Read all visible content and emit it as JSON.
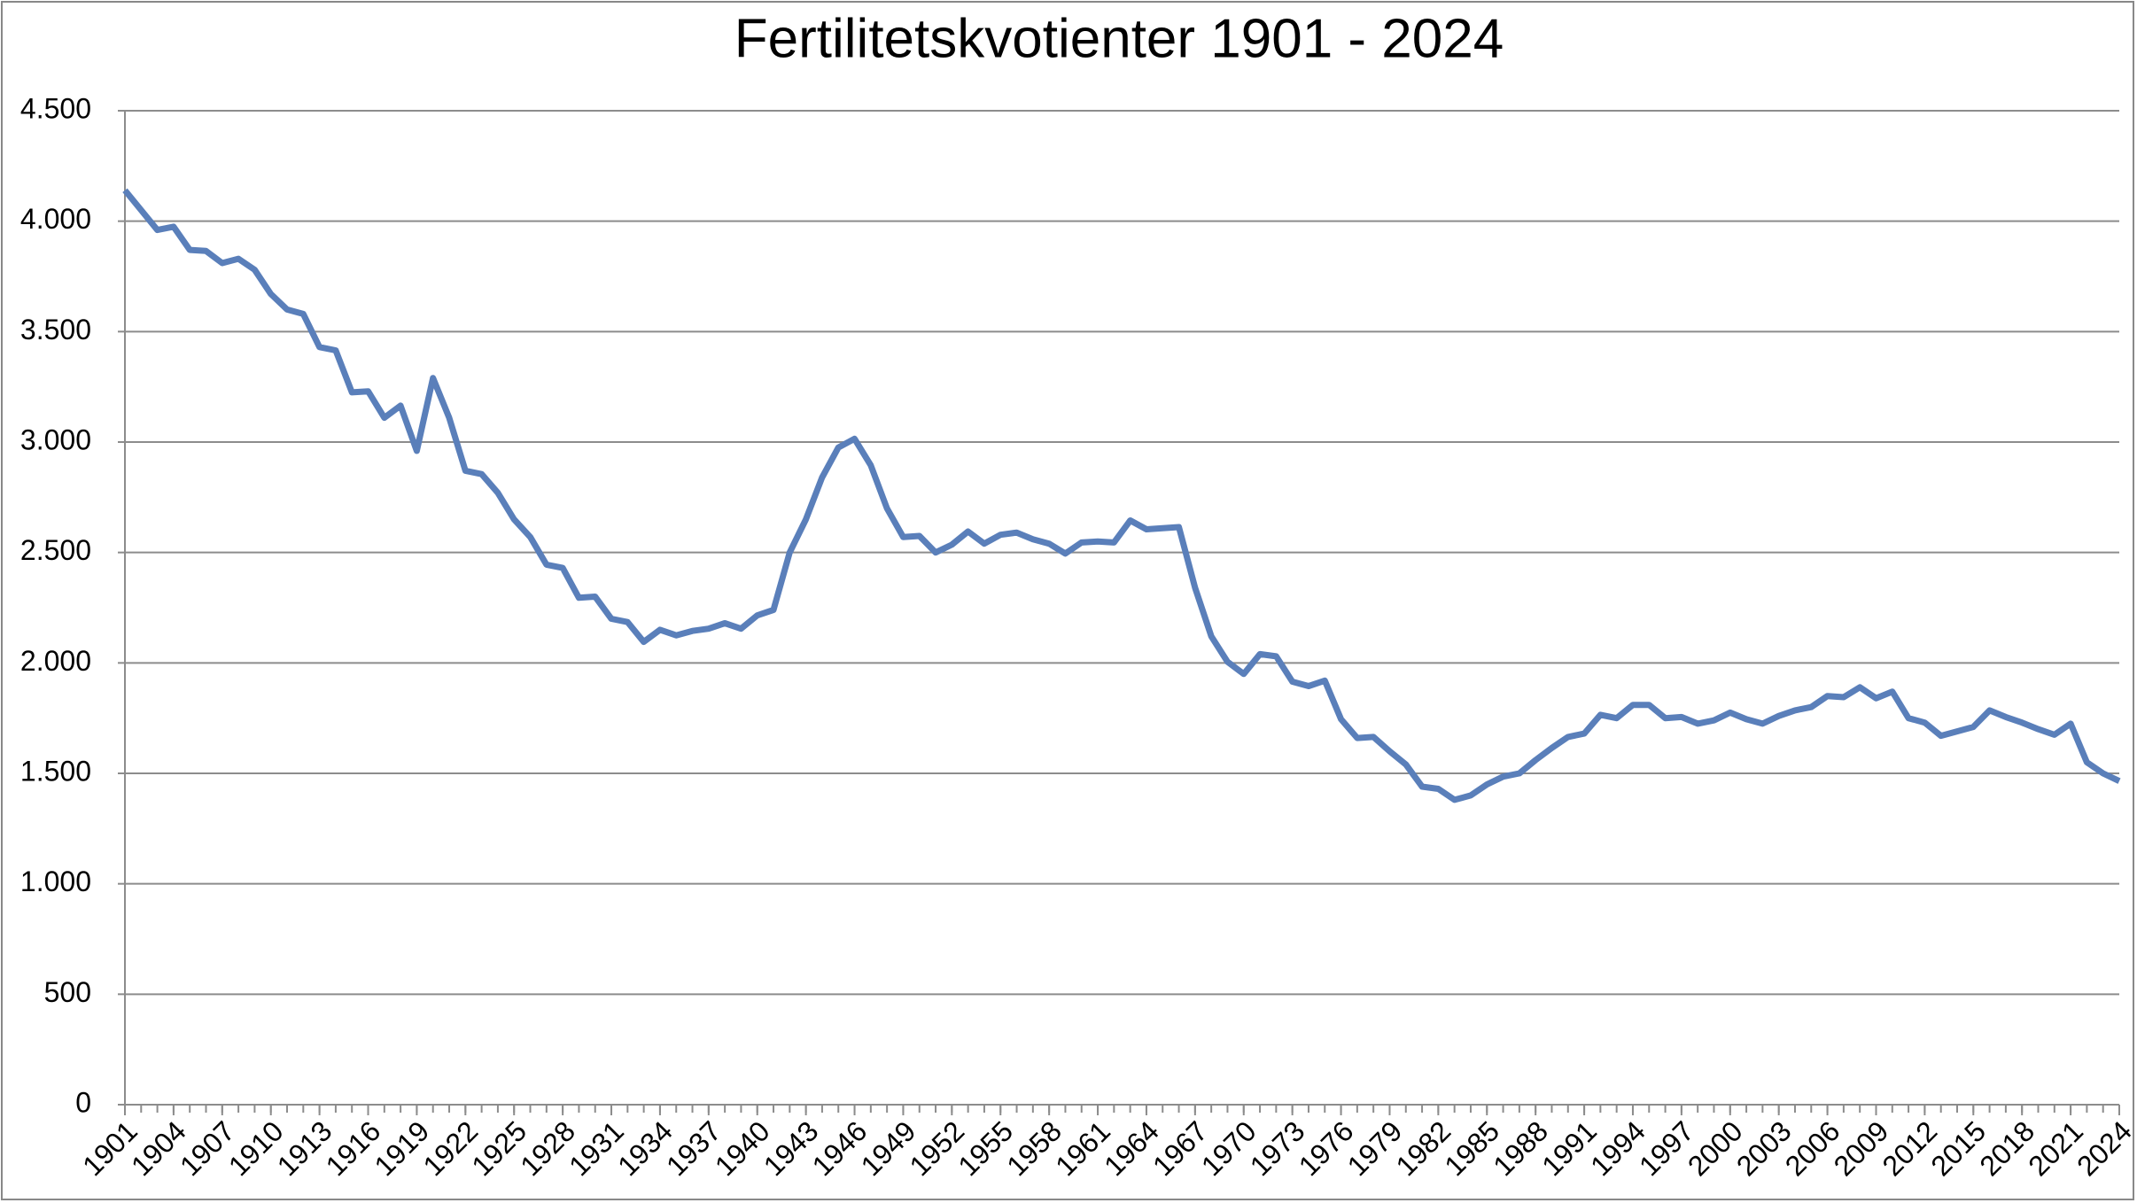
{
  "chart_data": {
    "type": "line",
    "title": "Fertilitetskvotienter 1901 - 2024",
    "x": [
      1901,
      1902,
      1903,
      1904,
      1905,
      1906,
      1907,
      1908,
      1909,
      1910,
      1911,
      1912,
      1913,
      1914,
      1915,
      1916,
      1917,
      1918,
      1919,
      1920,
      1921,
      1922,
      1923,
      1924,
      1925,
      1926,
      1927,
      1928,
      1929,
      1930,
      1931,
      1932,
      1933,
      1934,
      1935,
      1936,
      1937,
      1938,
      1939,
      1940,
      1941,
      1942,
      1943,
      1944,
      1945,
      1946,
      1947,
      1948,
      1949,
      1950,
      1951,
      1952,
      1953,
      1954,
      1955,
      1956,
      1957,
      1958,
      1959,
      1960,
      1961,
      1962,
      1963,
      1964,
      1965,
      1966,
      1967,
      1968,
      1969,
      1970,
      1971,
      1972,
      1973,
      1974,
      1975,
      1976,
      1977,
      1978,
      1979,
      1980,
      1981,
      1982,
      1983,
      1984,
      1985,
      1986,
      1987,
      1988,
      1989,
      1990,
      1991,
      1992,
      1993,
      1994,
      1995,
      1996,
      1997,
      1998,
      1999,
      2000,
      2001,
      2002,
      2003,
      2004,
      2005,
      2006,
      2007,
      2008,
      2009,
      2010,
      2011,
      2012,
      2013,
      2014,
      2015,
      2016,
      2017,
      2018,
      2019,
      2020,
      2021,
      2022,
      2023,
      2024
    ],
    "values": [
      4140,
      4050,
      3960,
      3975,
      3870,
      3865,
      3810,
      3830,
      3780,
      3670,
      3600,
      3580,
      3430,
      3415,
      3225,
      3230,
      3110,
      3165,
      2960,
      3290,
      3110,
      2870,
      2855,
      2770,
      2650,
      2570,
      2445,
      2430,
      2295,
      2300,
      2200,
      2185,
      2095,
      2150,
      2125,
      2145,
      2155,
      2180,
      2155,
      2215,
      2240,
      2500,
      2650,
      2840,
      2975,
      3015,
      2895,
      2700,
      2570,
      2575,
      2500,
      2535,
      2595,
      2540,
      2580,
      2590,
      2560,
      2540,
      2495,
      2545,
      2550,
      2545,
      2645,
      2605,
      2610,
      2615,
      2340,
      2120,
      2005,
      1950,
      2040,
      2030,
      1915,
      1895,
      1920,
      1745,
      1660,
      1665,
      1600,
      1540,
      1440,
      1430,
      1380,
      1400,
      1450,
      1485,
      1500,
      1560,
      1615,
      1665,
      1680,
      1765,
      1750,
      1810,
      1810,
      1750,
      1755,
      1725,
      1740,
      1775,
      1745,
      1725,
      1760,
      1785,
      1800,
      1850,
      1845,
      1890,
      1840,
      1870,
      1750,
      1730,
      1670,
      1690,
      1710,
      1785,
      1755,
      1730,
      1700,
      1675,
      1725,
      1550,
      1500,
      1465
    ],
    "color": "#5a7fba",
    "xlim": [
      1901,
      2024
    ],
    "xticks": [
      1901,
      1904,
      1907,
      1910,
      1913,
      1916,
      1919,
      1922,
      1925,
      1928,
      1931,
      1934,
      1937,
      1940,
      1943,
      1946,
      1949,
      1952,
      1955,
      1958,
      1961,
      1964,
      1967,
      1970,
      1973,
      1976,
      1979,
      1982,
      1985,
      1988,
      1991,
      1994,
      1997,
      2000,
      2003,
      2006,
      2009,
      2012,
      2015,
      2018,
      2021,
      2024
    ],
    "ylim": [
      0,
      4500
    ],
    "yticks": [
      0,
      500,
      {
        "value": 1000,
        "label": "1.000"
      },
      {
        "value": 1500,
        "label": "1.500"
      },
      {
        "value": 2000,
        "label": "2.000"
      },
      {
        "value": 2500,
        "label": "2.500"
      },
      {
        "value": 3000,
        "label": "3.000"
      },
      {
        "value": 3500,
        "label": "3.500"
      },
      {
        "value": 4000,
        "label": "4.000"
      },
      {
        "value": 4500,
        "label": "4.500"
      }
    ],
    "grid": true
  }
}
